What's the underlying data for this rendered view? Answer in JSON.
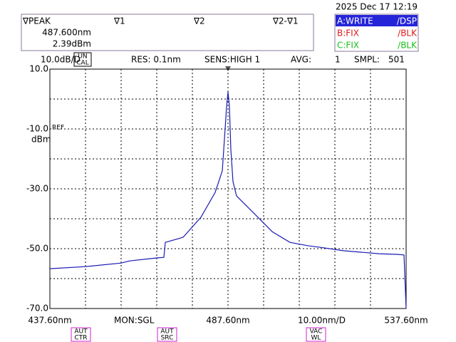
{
  "chart_data": {
    "type": "line",
    "datetime": "2025 Dec 17 12:19",
    "marker_panel": {
      "peak_label": "∇PEAK",
      "peak_wavelength": "487.600nm",
      "peak_level": "2.39dBm",
      "m1": "∇1",
      "m2": "∇2",
      "m21": "∇2-∇1"
    },
    "traces": [
      {
        "name": "A:WRITE",
        "mode": "/DSP"
      },
      {
        "name": "B:FIX",
        "mode": "/BLK"
      },
      {
        "name": "C:FIX",
        "mode": "/BLK"
      }
    ],
    "status": {
      "scale": "10.0dB/D",
      "uncal_1": "UN",
      "uncal_2": "CAL",
      "res": "RES: 0.1nm",
      "sens": "SENS:HIGH 1",
      "avg_label": "AVG:",
      "avg_value": "1",
      "smpl_label": "SMPL:",
      "smpl_value": "501"
    },
    "ref_label": "REF",
    "y_unit": "dBm",
    "mon": "MON:SGL",
    "span_per_div": "10.00nm/D",
    "buttons": [
      [
        "AUT",
        "CTR"
      ],
      [
        "AUT",
        "SRC"
      ],
      [
        "VAC",
        "WL"
      ]
    ],
    "color": "#1a1ab4",
    "grid": true,
    "xlim": [
      437.6,
      537.6
    ],
    "xticks": [
      {
        "value": 437.6,
        "label": "437.60nm"
      },
      {
        "value": 447.6,
        "label": null
      },
      {
        "value": 457.6,
        "label": null
      },
      {
        "value": 467.6,
        "label": null
      },
      {
        "value": 477.6,
        "label": null
      },
      {
        "value": 487.6,
        "label": "487.60nm"
      },
      {
        "value": 497.6,
        "label": null
      },
      {
        "value": 507.6,
        "label": null
      },
      {
        "value": 517.6,
        "label": null
      },
      {
        "value": 527.6,
        "label": null
      },
      {
        "value": 537.6,
        "label": "537.60nm"
      }
    ],
    "ylim": [
      -70,
      10
    ],
    "yticks": [
      {
        "value": 10,
        "label": "10.0"
      },
      {
        "value": 0,
        "label": null
      },
      {
        "value": -10,
        "label": "-10.0"
      },
      {
        "value": -20,
        "label": null
      },
      {
        "value": -30,
        "label": "-30.0"
      },
      {
        "value": -40,
        "label": null
      },
      {
        "value": -50,
        "label": "-50.0"
      },
      {
        "value": -60,
        "label": null
      },
      {
        "value": -70,
        "label": "-70.0"
      }
    ],
    "x": [
      437.6,
      447.6,
      457.6,
      460,
      467.6,
      469.6,
      470,
      475,
      480,
      484,
      486,
      486.8,
      487.2,
      487.6,
      488,
      488.4,
      489,
      490,
      495,
      500,
      505,
      510,
      515,
      520,
      525,
      530,
      535,
      537,
      537.6
    ],
    "values": [
      -56.7,
      -56,
      -54.8,
      -54.1,
      -53.1,
      -52.9,
      -47.9,
      -46.2,
      -39.5,
      -31.2,
      -24,
      -9.8,
      -2.6,
      2.39,
      -2.6,
      -16.9,
      -27.6,
      -32.4,
      -38.3,
      -44.3,
      -47.9,
      -49,
      -49.8,
      -50.7,
      -51.2,
      -51.7,
      -51.9,
      -52.1,
      -70
    ]
  }
}
